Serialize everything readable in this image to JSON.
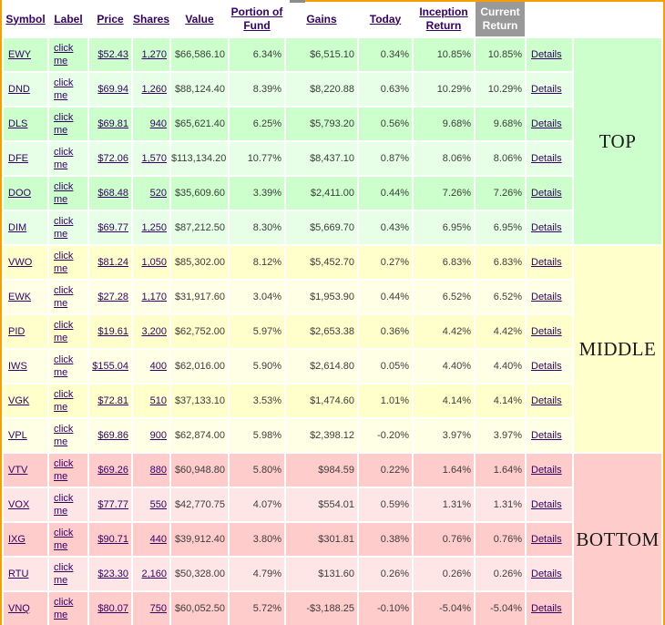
{
  "window": {
    "border_color": "#f5a000",
    "top_notch_color": "#8c8c8c"
  },
  "colors": {
    "link": "#330066",
    "text": "#3d3d3d",
    "active_header_bg": "#999999",
    "active_header_text": "#ffffff"
  },
  "header": {
    "columns": [
      {
        "label": "Symbol"
      },
      {
        "label": "Label"
      },
      {
        "label": "Price"
      },
      {
        "label": "Shares"
      },
      {
        "label": "Value"
      },
      {
        "label": "Portion of Fund"
      },
      {
        "label": "Gains"
      },
      {
        "label": "Today"
      },
      {
        "label": "Inception Return"
      },
      {
        "label": "Current Return",
        "active": true
      }
    ]
  },
  "labels": {
    "click_me": "click me",
    "details": "Details"
  },
  "row_columns": [
    {
      "field": "symbol",
      "link": true,
      "class": "c-left",
      "name": "symbol-link"
    },
    {
      "static": "click_me",
      "link": true,
      "class": "c-left",
      "name": "label-link"
    },
    {
      "field": "price",
      "link": true,
      "class": "c-num",
      "name": "price-link"
    },
    {
      "field": "shares",
      "link": true,
      "class": "c-num",
      "name": "shares-link"
    },
    {
      "field": "value",
      "link": false,
      "class": "c-num",
      "name": "value"
    },
    {
      "field": "portion",
      "link": false,
      "class": "c-num",
      "name": "portion-of-fund"
    },
    {
      "field": "gains",
      "link": false,
      "class": "c-num",
      "name": "gains"
    },
    {
      "field": "today",
      "link": false,
      "class": "c-num",
      "name": "today"
    },
    {
      "field": "inception",
      "link": false,
      "class": "c-num",
      "name": "inception-return"
    },
    {
      "field": "current",
      "link": false,
      "class": "c-num",
      "name": "current-return"
    },
    {
      "static": "details",
      "link": true,
      "class": "c-left",
      "name": "details-link"
    }
  ],
  "sections": [
    {
      "name": "TOP",
      "base_color": "#ccffcc",
      "alt_color": "#e6ffe6",
      "rows": [
        {
          "symbol": "EWY",
          "price": "$52.43",
          "shares": "1,270",
          "value": "$66,586.10",
          "portion": "6.34%",
          "gains": "$6,515.10",
          "today": "0.34%",
          "inception": "10.85%",
          "current": "10.85%"
        },
        {
          "symbol": "DND",
          "price": "$69.94",
          "shares": "1,260",
          "value": "$88,124.40",
          "portion": "8.39%",
          "gains": "$8,220.88",
          "today": "0.63%",
          "inception": "10.29%",
          "current": "10.29%"
        },
        {
          "symbol": "DLS",
          "price": "$69.81",
          "shares": "940",
          "value": "$65,621.40",
          "portion": "6.25%",
          "gains": "$5,793.20",
          "today": "0.56%",
          "inception": "9.68%",
          "current": "9.68%"
        },
        {
          "symbol": "DFE",
          "price": "$72.06",
          "shares": "1,570",
          "value": "$113,134.20",
          "portion": "10.77%",
          "gains": "$8,437.10",
          "today": "0.87%",
          "inception": "8.06%",
          "current": "8.06%"
        },
        {
          "symbol": "DOO",
          "price": "$68.48",
          "shares": "520",
          "value": "$35,609.60",
          "portion": "3.39%",
          "gains": "$2,411.00",
          "today": "0.44%",
          "inception": "7.26%",
          "current": "7.26%"
        },
        {
          "symbol": "DIM",
          "price": "$69.77",
          "shares": "1,250",
          "value": "$87,212.50",
          "portion": "8.30%",
          "gains": "$5,669.70",
          "today": "0.43%",
          "inception": "6.95%",
          "current": "6.95%"
        }
      ]
    },
    {
      "name": "MIDDLE",
      "base_color": "#ffffcc",
      "alt_color": "#ffffe6",
      "rows": [
        {
          "symbol": "VWO",
          "price": "$81.24",
          "shares": "1,050",
          "value": "$85,302.00",
          "portion": "8.12%",
          "gains": "$5,452.70",
          "today": "0.27%",
          "inception": "6.83%",
          "current": "6.83%"
        },
        {
          "symbol": "EWK",
          "price": "$27.28",
          "shares": "1,170",
          "value": "$31,917.60",
          "portion": "3.04%",
          "gains": "$1,953.90",
          "today": "0.44%",
          "inception": "6.52%",
          "current": "6.52%"
        },
        {
          "symbol": "PID",
          "price": "$19.61",
          "shares": "3,200",
          "value": "$62,752.00",
          "portion": "5.97%",
          "gains": "$2,653.38",
          "today": "0.36%",
          "inception": "4.42%",
          "current": "4.42%"
        },
        {
          "symbol": "IWS",
          "price": "$155.04",
          "shares": "400",
          "value": "$62,016.00",
          "portion": "5.90%",
          "gains": "$2,614.80",
          "today": "0.05%",
          "inception": "4.40%",
          "current": "4.40%"
        },
        {
          "symbol": "VGK",
          "price": "$72.81",
          "shares": "510",
          "value": "$37,133.10",
          "portion": "3.53%",
          "gains": "$1,474.60",
          "today": "1.01%",
          "inception": "4.14%",
          "current": "4.14%"
        },
        {
          "symbol": "VPL",
          "price": "$69.86",
          "shares": "900",
          "value": "$62,874.00",
          "portion": "5.98%",
          "gains": "$2,398.12",
          "today": "-0.20%",
          "inception": "3.97%",
          "current": "3.97%"
        }
      ]
    },
    {
      "name": "BOTTOM",
      "base_color": "#ffcccc",
      "alt_color": "#ffe6e6",
      "rows": [
        {
          "symbol": "VTV",
          "price": "$69.26",
          "shares": "880",
          "value": "$60,948.80",
          "portion": "5.80%",
          "gains": "$984.59",
          "today": "0.22%",
          "inception": "1.64%",
          "current": "1.64%"
        },
        {
          "symbol": "VOX",
          "price": "$77.77",
          "shares": "550",
          "value": "$42,770.75",
          "portion": "4.07%",
          "gains": "$554.01",
          "today": "0.59%",
          "inception": "1.31%",
          "current": "1.31%"
        },
        {
          "symbol": "IXG",
          "price": "$90.71",
          "shares": "440",
          "value": "$39,912.40",
          "portion": "3.80%",
          "gains": "$301.81",
          "today": "0.38%",
          "inception": "0.76%",
          "current": "0.76%"
        },
        {
          "symbol": "RTU",
          "price": "$23.30",
          "shares": "2,160",
          "value": "$50,328.00",
          "portion": "4.79%",
          "gains": "$131.60",
          "today": "0.26%",
          "inception": "0.26%",
          "current": "0.26%"
        },
        {
          "symbol": "VNQ",
          "price": "$80.07",
          "shares": "750",
          "value": "$60,052.50",
          "portion": "5.72%",
          "gains": "-$3,188.25",
          "today": "-0.10%",
          "inception": "-5.04%",
          "current": "-5.04%"
        }
      ]
    }
  ]
}
